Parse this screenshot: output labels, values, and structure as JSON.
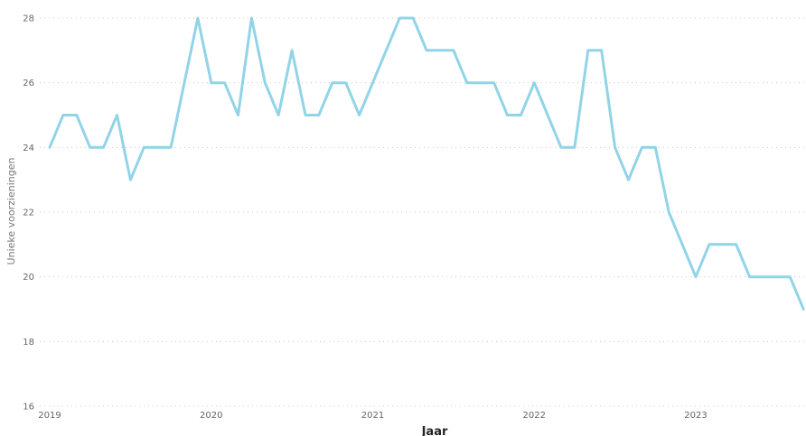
{
  "chart_data": {
    "type": "line",
    "xlabel": "Jaar",
    "ylabel": "Unieke voorzieningen",
    "ylim": [
      16,
      28
    ],
    "yticks": [
      16,
      18,
      20,
      22,
      24,
      26,
      28
    ],
    "xticks": [
      "2019",
      "2020",
      "2021",
      "2022",
      "2023"
    ],
    "grid": "horizontal dotted",
    "line_color": "#91D4E8",
    "x": [
      "2019-01",
      "2019-02",
      "2019-03",
      "2019-04",
      "2019-05",
      "2019-06",
      "2019-07",
      "2019-08",
      "2019-09",
      "2019-10",
      "2019-11",
      "2019-12",
      "2020-01",
      "2020-02",
      "2020-03",
      "2020-04",
      "2020-05",
      "2020-06",
      "2020-07",
      "2020-08",
      "2020-09",
      "2020-10",
      "2020-11",
      "2020-12",
      "2021-01",
      "2021-02",
      "2021-03",
      "2021-04",
      "2021-05",
      "2021-06",
      "2021-07",
      "2021-08",
      "2021-09",
      "2021-10",
      "2021-11",
      "2021-12",
      "2022-01",
      "2022-02",
      "2022-03",
      "2022-04",
      "2022-05",
      "2022-06",
      "2022-07",
      "2022-08",
      "2022-09",
      "2022-10",
      "2022-11",
      "2022-12",
      "2023-01",
      "2023-02",
      "2023-03",
      "2023-04",
      "2023-05",
      "2023-06",
      "2023-07",
      "2023-08",
      "2023-09"
    ],
    "series": [
      {
        "values": [
          24,
          25,
          25,
          24,
          24,
          25,
          23,
          24,
          24,
          24,
          26,
          28,
          26,
          26,
          25,
          28,
          26,
          25,
          27,
          25,
          25,
          26,
          26,
          25,
          26,
          27,
          28,
          28,
          27,
          27,
          27,
          26,
          26,
          26,
          25,
          25,
          26,
          25,
          24,
          24,
          27,
          27,
          24,
          23,
          24,
          24,
          22,
          21,
          20,
          21,
          21,
          21,
          20,
          20,
          20,
          20,
          19
        ]
      }
    ]
  }
}
